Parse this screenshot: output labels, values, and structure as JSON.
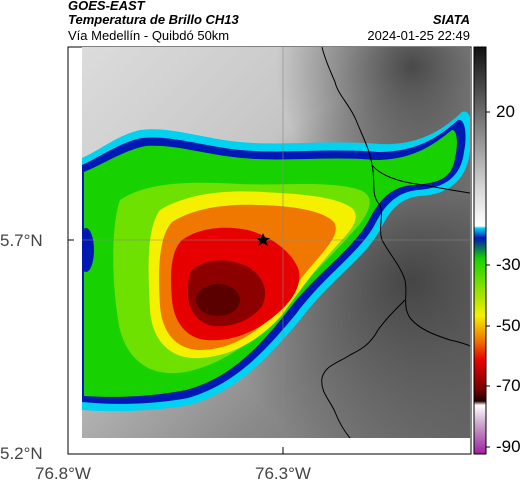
{
  "header": {
    "satellite": "GOES-EAST",
    "product": "Temperatura de Brillo CH13",
    "location": "Vía Medellín - Quibdó 50km",
    "agency": "SIATA",
    "datetime": "2024-01-25 22:49"
  },
  "map": {
    "lat_ticks": [
      "5.7°N",
      "5.2°N"
    ],
    "lon_ticks": [
      "76.8°W",
      "76.3°W"
    ],
    "marker": "star-marker",
    "colors": {
      "background_gray_light": "#dcdcdc",
      "background_gray_dark": "#4a4a4a",
      "cyan_edge": "#00d2f0",
      "blue_band": "#0018b4",
      "green": "#18d200",
      "yellow": "#f5f000",
      "orange": "#f07800",
      "red": "#e60000",
      "dark_red": "#780000"
    }
  },
  "colorbar": {
    "ticks": [
      "20",
      "-30",
      "-50",
      "-70",
      "-90"
    ],
    "units": ""
  }
}
